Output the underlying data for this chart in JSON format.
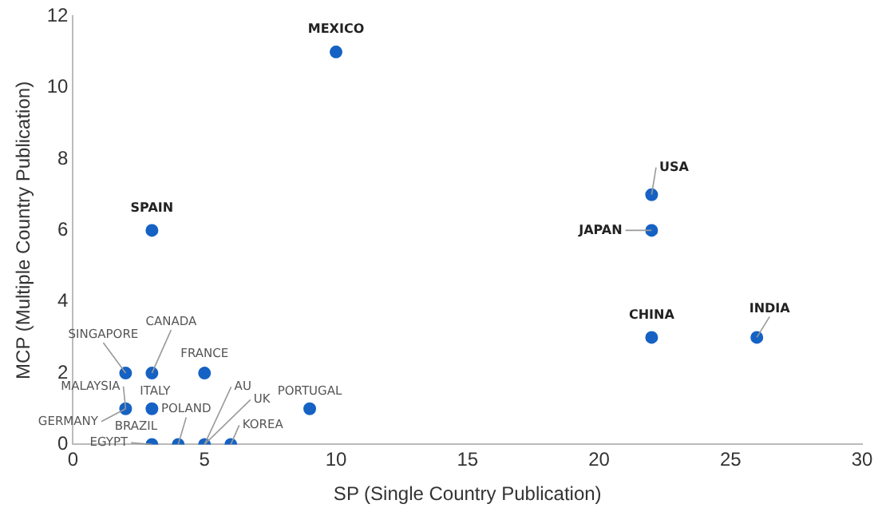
{
  "chart_data": {
    "type": "scatter",
    "xlabel": "SP (Single Country Publication)",
    "ylabel": "MCP (Multiple Country Publication)",
    "x": [
      10,
      3,
      22,
      22,
      22,
      26,
      2,
      3,
      5,
      2,
      3,
      9,
      3,
      4,
      5,
      6
    ],
    "series": [
      {
        "color": "#1662c4",
        "values": [
          11,
          6,
          7,
          6,
          3,
          3,
          2,
          2,
          2,
          1,
          1,
          1,
          0,
          0,
          0,
          0
        ]
      }
    ],
    "xlim": [
      0,
      30
    ],
    "xticks": [
      0,
      5,
      10,
      15,
      20,
      25,
      30
    ],
    "ylim": [
      0,
      12
    ],
    "yticks": [
      0,
      2,
      4,
      6,
      8,
      10,
      12
    ],
    "grid": false,
    "legend": false,
    "marker": "circle",
    "annotations": [
      {
        "text": "MEXICO",
        "x": 10,
        "y": 11
      },
      {
        "text": "SPAIN",
        "x": 3,
        "y": 6
      },
      {
        "text": "USA",
        "x": 22,
        "y": 7
      },
      {
        "text": "JAPAN",
        "x": 22,
        "y": 6
      },
      {
        "text": "CHINA",
        "x": 22,
        "y": 3
      },
      {
        "text": "INDIA",
        "x": 26,
        "y": 3
      },
      {
        "text": "SINGAPORE",
        "x": 2,
        "y": 2
      },
      {
        "text": "CANADA",
        "x": 3,
        "y": 2
      },
      {
        "text": "FRANCE",
        "x": 5,
        "y": 2
      },
      {
        "text": "MALAYSIA",
        "x": 2,
        "y": 1
      },
      {
        "text": "GERMANY",
        "x": 2,
        "y": 1
      },
      {
        "text": "ITALY",
        "x": 3,
        "y": 1
      },
      {
        "text": "PORTUGAL",
        "x": 9,
        "y": 1
      },
      {
        "text": "EGYPT",
        "x": 3,
        "y": 0
      },
      {
        "text": "BRAZIL",
        "x": 3,
        "y": 0
      },
      {
        "text": "POLAND",
        "x": 4,
        "y": 0
      },
      {
        "text": "AU",
        "x": 5,
        "y": 0
      },
      {
        "text": "UK",
        "x": 5,
        "y": 0
      },
      {
        "text": "KOREA",
        "x": 6,
        "y": 0
      }
    ]
  }
}
